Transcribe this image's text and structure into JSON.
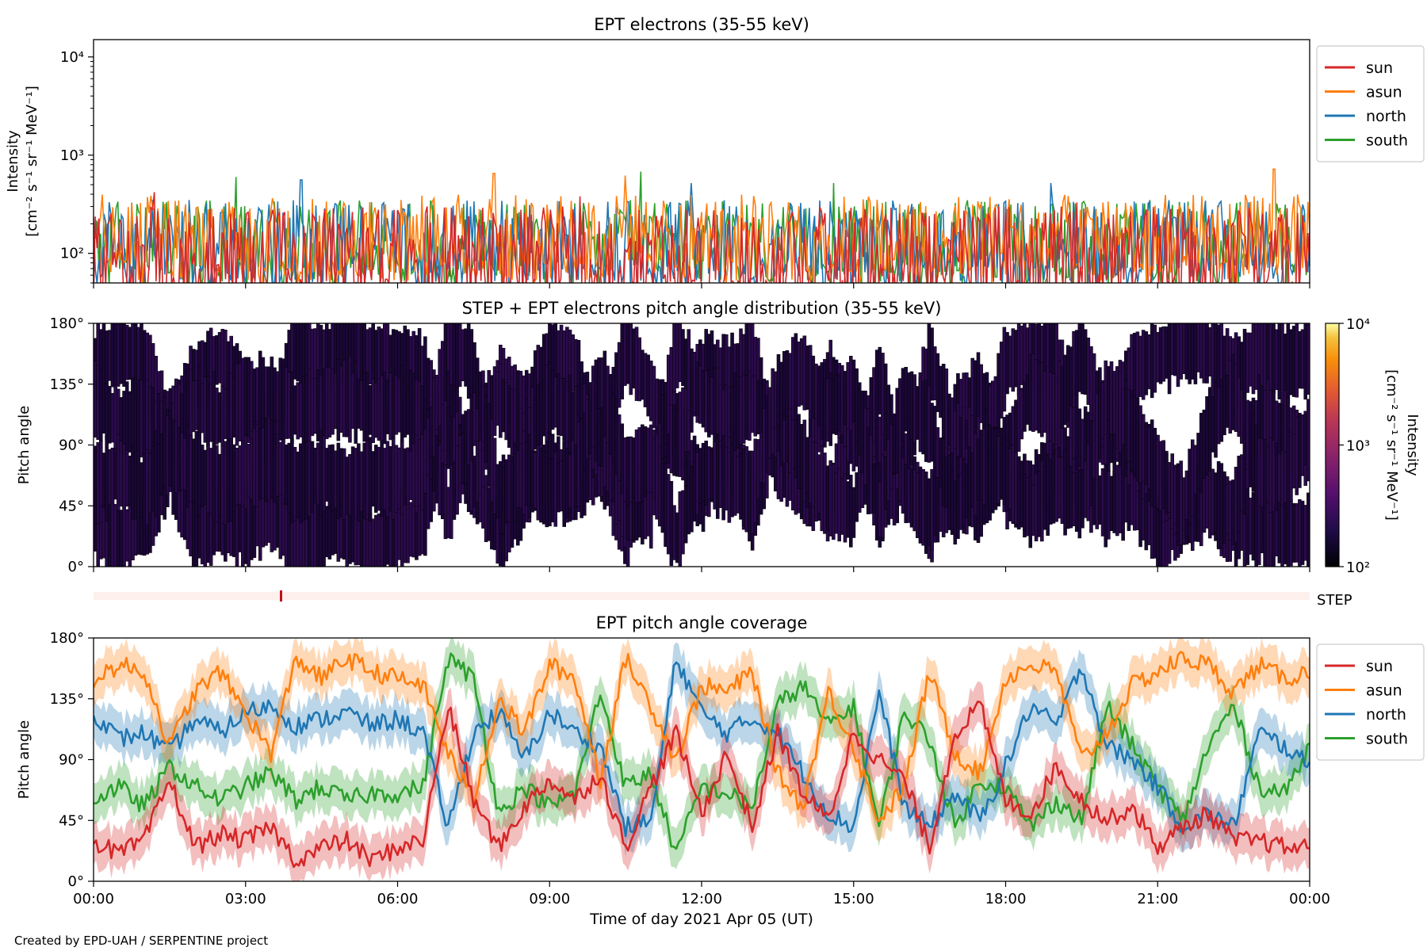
{
  "footer": "Created by EPD-UAH / SERPENTINE project",
  "colors": {
    "sun": "#d62728",
    "asun": "#ff7f0e",
    "north": "#1f77b4",
    "south": "#2ca02c",
    "step_bar": "#fdf0ec",
    "step_tick": "#c0101a"
  },
  "legend": [
    "sun",
    "asun",
    "north",
    "south"
  ],
  "chart_data": [
    {
      "type": "line",
      "title": "EPT electrons (35-55 keV)",
      "ylabel": "Intensity",
      "yunit": "[cm⁻² s⁻¹ sr⁻¹ MeV⁻¹]",
      "yscale": "log",
      "ylim": [
        50,
        15000
      ],
      "y_ticks": [
        "10²",
        "10³",
        "10⁴"
      ],
      "x_ticks": [
        "00:00",
        "03:00",
        "06:00",
        "09:00",
        "12:00",
        "15:00",
        "18:00",
        "21:00",
        "00:00"
      ],
      "xlim_hours": [
        0,
        24
      ],
      "legend_position": "outside-right-top",
      "series": [
        {
          "name": "sun",
          "typical_range": [
            50,
            300
          ],
          "peaks": [
            {
              "hour": 1.2,
              "value": 420
            },
            {
              "hour": 9.6,
              "value": 380
            },
            {
              "hour": 19.4,
              "value": 330
            }
          ]
        },
        {
          "name": "asun",
          "typical_range": [
            80,
            400
          ],
          "peaks": [
            {
              "hour": 7.9,
              "value": 650
            },
            {
              "hour": 10.5,
              "value": 620
            },
            {
              "hour": 23.3,
              "value": 720
            }
          ]
        },
        {
          "name": "north",
          "typical_range": [
            70,
            350
          ],
          "peaks": [
            {
              "hour": 4.1,
              "value": 560
            },
            {
              "hour": 11.8,
              "value": 520
            },
            {
              "hour": 18.9,
              "value": 520
            }
          ]
        },
        {
          "name": "south",
          "typical_range": [
            70,
            350
          ],
          "peaks": [
            {
              "hour": 2.8,
              "value": 600
            },
            {
              "hour": 10.8,
              "value": 680
            },
            {
              "hour": 14.6,
              "value": 520
            }
          ]
        }
      ]
    },
    {
      "type": "heatmap",
      "title": "STEP + EPT electrons pitch angle distribution (35-55 keV)",
      "ylabel": "Pitch angle",
      "ylim": [
        0,
        180
      ],
      "y_ticks": [
        "0°",
        "45°",
        "90°",
        "135°",
        "180°"
      ],
      "xlim_hours": [
        0,
        24
      ],
      "colorbar": {
        "label": "Intensity",
        "unit": "[cm⁻² s⁻¹ sr⁻¹ MeV⁻¹]",
        "scale": "log",
        "range": [
          100,
          10000
        ],
        "ticks": [
          "10²",
          "10³",
          "10⁴"
        ],
        "colormap": "inferno"
      },
      "dominant_value_range": [
        100,
        300
      ]
    },
    {
      "type": "bar",
      "label": "STEP",
      "xlim_hours": [
        0,
        24
      ],
      "marks_hours": [
        3.7
      ]
    },
    {
      "type": "line",
      "title": "EPT pitch angle coverage",
      "ylabel": "Pitch angle",
      "xlabel": "Time of day 2021 Apr 05 (UT)",
      "ylim": [
        0,
        180
      ],
      "y_ticks": [
        "0°",
        "45°",
        "90°",
        "135°",
        "180°"
      ],
      "x_ticks": [
        "00:00",
        "03:00",
        "06:00",
        "09:00",
        "12:00",
        "15:00",
        "18:00",
        "21:00",
        "00:00"
      ],
      "xlim_hours": [
        0,
        24
      ],
      "legend_position": "outside-right-top",
      "shaded_band": "±15°",
      "x": [
        0,
        0.5,
        1,
        1.5,
        2,
        2.5,
        3,
        3.5,
        4,
        4.5,
        5,
        5.5,
        6,
        6.5,
        7,
        7.5,
        8,
        8.5,
        9,
        9.5,
        10,
        10.5,
        11,
        11.5,
        12,
        12.5,
        13,
        13.5,
        14,
        14.5,
        15,
        15.5,
        16,
        16.5,
        17,
        17.5,
        18,
        18.5,
        19,
        19.5,
        20,
        20.5,
        21,
        21.5,
        22,
        22.5,
        23,
        23.5,
        24
      ],
      "series": [
        {
          "name": "sun",
          "values": [
            30,
            20,
            30,
            75,
            25,
            35,
            30,
            40,
            15,
            25,
            30,
            15,
            25,
            30,
            130,
            60,
            25,
            55,
            75,
            60,
            80,
            25,
            70,
            110,
            50,
            95,
            40,
            110,
            65,
            45,
            110,
            90,
            75,
            25,
            110,
            130,
            60,
            50,
            85,
            60,
            45,
            55,
            25,
            40,
            50,
            30,
            30,
            25,
            25
          ]
        },
        {
          "name": "asun",
          "values": [
            150,
            160,
            155,
            100,
            140,
            155,
            125,
            95,
            165,
            150,
            165,
            155,
            150,
            145,
            95,
            60,
            135,
            110,
            160,
            150,
            75,
            165,
            130,
            90,
            145,
            140,
            155,
            80,
            55,
            140,
            100,
            45,
            70,
            155,
            95,
            80,
            150,
            160,
            155,
            90,
            110,
            145,
            155,
            165,
            160,
            140,
            160,
            150,
            155
          ]
        },
        {
          "name": "north",
          "values": [
            125,
            105,
            110,
            95,
            120,
            110,
            125,
            130,
            115,
            120,
            125,
            115,
            120,
            110,
            40,
            110,
            125,
            90,
            125,
            110,
            100,
            40,
            45,
            165,
            125,
            110,
            120,
            110,
            80,
            50,
            40,
            140,
            55,
            40,
            65,
            45,
            85,
            130,
            115,
            160,
            100,
            90,
            70,
            40,
            50,
            40,
            110,
            100,
            85
          ]
        },
        {
          "name": "south",
          "values": [
            60,
            70,
            55,
            85,
            70,
            60,
            70,
            80,
            60,
            70,
            60,
            65,
            65,
            70,
            165,
            150,
            50,
            70,
            55,
            65,
            140,
            70,
            80,
            20,
            70,
            65,
            55,
            130,
            145,
            115,
            130,
            40,
            125,
            105,
            40,
            75,
            70,
            40,
            60,
            45,
            130,
            100,
            70,
            45,
            100,
            130,
            70,
            65,
            100
          ]
        }
      ]
    }
  ]
}
